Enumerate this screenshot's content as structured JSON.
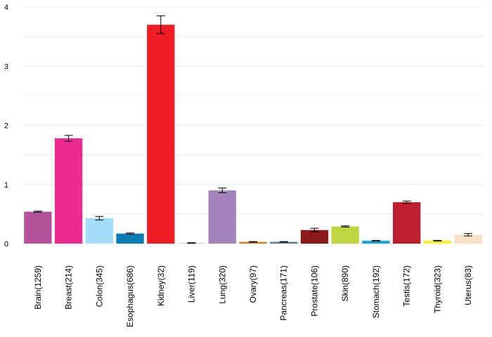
{
  "chart_data": {
    "type": "bar",
    "title": "",
    "xlabel": "",
    "ylabel": "",
    "ylim": [
      0,
      4.1
    ],
    "yticks": [
      0,
      1,
      2,
      3,
      4
    ],
    "grid": "horizontal, light",
    "legend": "none",
    "categories": [
      "Brain(1259)",
      "Breast(214)",
      "Colon(345)",
      "Esophagus(686)",
      "Kidney(32)",
      "Liver(119)",
      "Lung(320)",
      "Ovary(97)",
      "Pancreas(171)",
      "Prostate(106)",
      "Skin(890)",
      "Stomach(192)",
      "Testis(172)",
      "Thyroid(323)",
      "Uterus(83)"
    ],
    "values": [
      0.54,
      1.78,
      0.43,
      0.17,
      3.7,
      0.01,
      0.9,
      0.03,
      0.03,
      0.23,
      0.29,
      0.05,
      0.7,
      0.05,
      0.15
    ],
    "errors": [
      0.01,
      0.05,
      0.03,
      0.01,
      0.15,
      0.005,
      0.04,
      0.005,
      0.005,
      0.03,
      0.01,
      0.005,
      0.02,
      0.005,
      0.02
    ],
    "colors": [
      "#b5529c",
      "#ef2a91",
      "#a3ddf7",
      "#0b7bb3",
      "#ee1c25",
      "#cccccc",
      "#a283bc",
      "#e07b28",
      "#5f7f9b",
      "#8b1a1d",
      "#c0d640",
      "#18a5d6",
      "#c01f2f",
      "#f7ef2a",
      "#f8e1c6"
    ]
  }
}
